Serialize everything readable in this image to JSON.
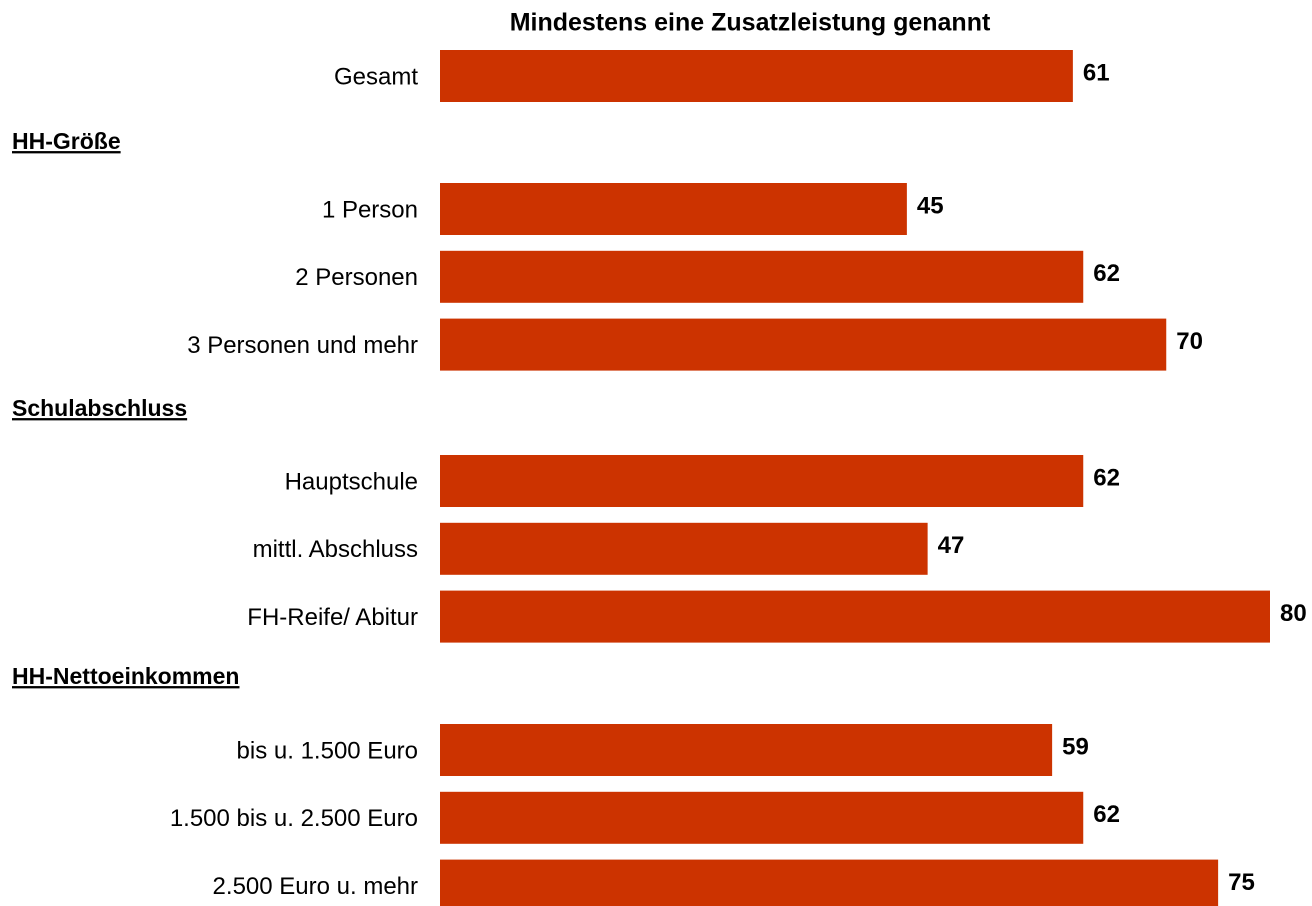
{
  "chart_data": {
    "type": "bar",
    "title": "Mindestens eine Zusatzleistung genannt",
    "color": "#cc3300",
    "categories": [
      "Gesamt"
    ],
    "values": [
      61
    ],
    "groups": [
      {
        "name": "HH-Größe",
        "categories": [
          "1 Person",
          "2 Personen",
          "3 Personen und mehr"
        ],
        "values": [
          45,
          62,
          70
        ]
      },
      {
        "name": "Schulabschluss",
        "categories": [
          "Hauptschule",
          "mittl. Abschluss",
          "FH-Reife/ Abitur"
        ],
        "values": [
          62,
          47,
          80
        ]
      },
      {
        "name": "HH-Nettoeinkommen",
        "categories": [
          "bis u. 1.500 Euro",
          "1.500 bis u. 2.500 Euro",
          "2.500 Euro u. mehr"
        ],
        "values": [
          59,
          62,
          75
        ]
      }
    ]
  }
}
